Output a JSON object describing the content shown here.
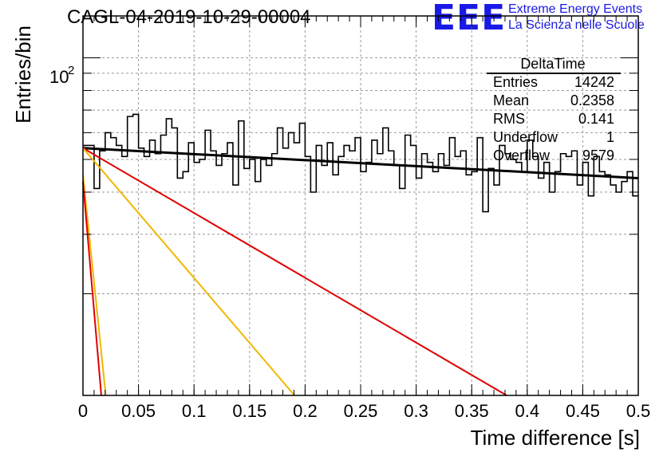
{
  "header": {
    "title": "CAGL-04-2019-10-29-00004",
    "logo_text": "EEE",
    "org_line1": "Extreme Energy Events",
    "org_line2": "La Scienza nelle Scuole"
  },
  "chart_data": {
    "type": "histogram",
    "xlabel": "Time difference [s]",
    "ylabel": "Entries/bin",
    "xlim": [
      0,
      0.5
    ],
    "ylim_log": [
      10,
      133
    ],
    "yscale": "log",
    "grid": true,
    "x_ticks": [
      "0",
      "0.05",
      "0.1",
      "0.15",
      "0.2",
      "0.25",
      "0.3",
      "0.35",
      "0.4",
      "0.45",
      "0.5"
    ],
    "y_tick_label": "10^2",
    "stats_box": {
      "name": "DeltaTime",
      "entries_label": "Entries",
      "entries": "14242",
      "mean_label": "Mean",
      "mean": "0.2358",
      "rms_label": "RMS",
      "rms": "0.141",
      "underflow_label": "Underflow",
      "underflow": "1",
      "overflow_label": "Overflow",
      "overflow": "9579"
    },
    "bin_width": 0.005,
    "histogram_values": [
      55,
      55,
      41,
      53,
      60,
      58,
      55,
      51,
      67,
      68,
      54,
      51,
      57,
      52,
      59,
      66,
      62,
      44,
      46,
      56,
      49,
      50,
      61,
      53,
      48,
      52,
      56,
      42,
      65,
      47,
      50,
      43,
      50,
      48,
      52,
      62,
      54,
      60,
      56,
      64,
      51,
      40,
      55,
      48,
      56,
      45,
      51,
      55,
      53,
      58,
      46,
      49,
      57,
      52,
      62,
      53,
      48,
      41,
      59,
      55,
      44,
      52,
      49,
      46,
      52,
      48,
      58,
      51,
      53,
      45,
      46,
      58,
      35,
      47,
      42,
      55,
      52,
      50,
      49,
      46,
      57,
      51,
      44,
      49,
      40,
      46,
      52,
      51,
      53,
      42,
      49,
      39,
      51,
      46,
      45,
      42,
      40,
      43,
      46,
      39
    ],
    "fits": [
      {
        "color": "#000000",
        "x": [
          0,
          0.5
        ],
        "y": [
          54,
          44
        ]
      },
      {
        "color": "#e00000",
        "x": [
          0,
          0.3815
        ],
        "y": [
          54,
          10
        ]
      },
      {
        "color": "#f0b800",
        "x": [
          0,
          0.1905
        ],
        "y": [
          54,
          10
        ]
      },
      {
        "color": "#f0b800",
        "x": [
          0,
          0.0205
        ],
        "y": [
          45,
          10
        ]
      },
      {
        "color": "#e00000",
        "x": [
          0,
          0.0165
        ],
        "y": [
          43,
          10
        ]
      }
    ]
  }
}
